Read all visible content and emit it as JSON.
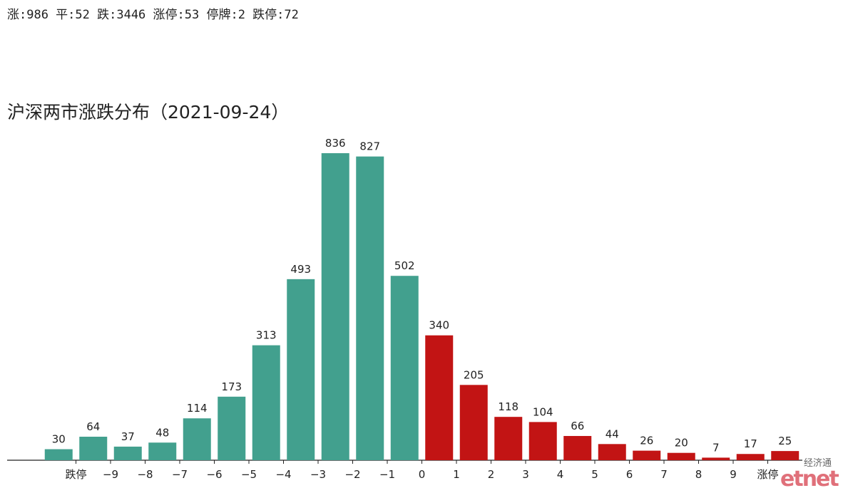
{
  "header": "涨:986 平:52 跌:3446 涨停:53 停牌:2 跌停:72",
  "watermark": {
    "top": "经济通",
    "brand": "etnet"
  },
  "chart_data": {
    "type": "bar",
    "title": "沪深两市涨跌分布（2021-09-24）",
    "categories": [
      null,
      null,
      null,
      null,
      null,
      null,
      null,
      null,
      null,
      null,
      null,
      null,
      null,
      null,
      null,
      null,
      null,
      null,
      null,
      null,
      null,
      null
    ],
    "values": [
      30,
      64,
      37,
      48,
      114,
      173,
      313,
      493,
      836,
      827,
      502,
      340,
      205,
      118,
      104,
      66,
      44,
      26,
      20,
      7,
      17,
      25
    ],
    "colors": [
      "#42a08e",
      "#42a08e",
      "#42a08e",
      "#42a08e",
      "#42a08e",
      "#42a08e",
      "#42a08e",
      "#42a08e",
      "#42a08e",
      "#42a08e",
      "#42a08e",
      "#c21414",
      "#c21414",
      "#c21414",
      "#c21414",
      "#c21414",
      "#c21414",
      "#c21414",
      "#c21414",
      "#c21414",
      "#c21414",
      "#c21414"
    ],
    "boundary_labels": [
      "跌停",
      "−9",
      "−8",
      "−7",
      "−6",
      "−5",
      "−4",
      "−3",
      "−2",
      "−1",
      "0",
      "1",
      "2",
      "3",
      "4",
      "5",
      "6",
      "7",
      "8",
      "9",
      "涨停"
    ],
    "ylim": [
      0,
      870
    ],
    "grid": false
  }
}
